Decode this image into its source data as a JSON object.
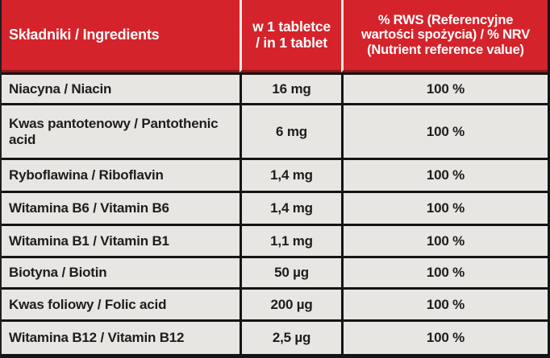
{
  "colors": {
    "header_bg": "#d5232b",
    "header_text": "#ffffff",
    "header_divider": "#f3ece8",
    "row_bg": "#e7e6e3",
    "row_text": "#1d1d1b",
    "grid_border": "#141414"
  },
  "table": {
    "header": {
      "ingredients_label": "Składniki / Ingredients",
      "amount_lines": [
        "w 1 tabletce",
        "/ in 1 tablet"
      ],
      "nrv_lines": [
        "% RWS (Referencyjne",
        "wartości spożycia) / % NRV",
        "(Nutrient reference value)"
      ]
    },
    "rows": [
      {
        "ingredient": "Niacyna / Niacin",
        "amount": "16 mg",
        "nrv": "100 %"
      },
      {
        "ingredient": "Kwas pantotenowy / Pantothenic acid",
        "amount": "6 mg",
        "nrv": "100 %"
      },
      {
        "ingredient": "Ryboflawina / Riboflavin",
        "amount": "1,4 mg",
        "nrv": "100 %"
      },
      {
        "ingredient": "Witamina B6 / Vitamin B6",
        "amount": "1,4 mg",
        "nrv": "100 %"
      },
      {
        "ingredient": "Witamina B1 / Vitamin B1",
        "amount": "1,1 mg",
        "nrv": "100 %"
      },
      {
        "ingredient": "Biotyna / Biotin",
        "amount": "50 µg",
        "nrv": "100 %"
      },
      {
        "ingredient": "Kwas foliowy / Folic acid",
        "amount": "200 µg",
        "nrv": "100 %"
      },
      {
        "ingredient": "Witamina B12 / Vitamin B12",
        "amount": "2,5 µg",
        "nrv": "100 %"
      }
    ]
  }
}
